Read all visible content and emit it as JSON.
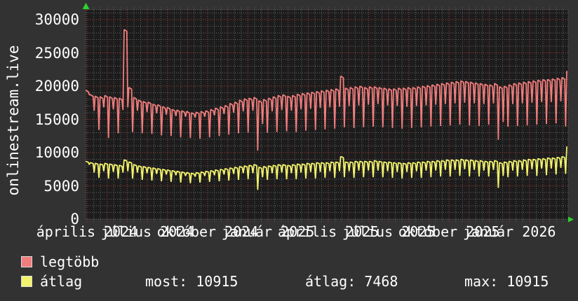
{
  "title_vertical": "onlinestream.live",
  "colors": {
    "background": "#323232",
    "plot_background": "#1c1c1c",
    "grid_minor": "#646464",
    "grid_major": "#a83c3c",
    "text": "#ffffff",
    "arrow": "#2ed22e",
    "series_legtobb": "#f17d7d",
    "series_atlag": "#f3f36d",
    "swatch_border": "#dcdcdc"
  },
  "legend": {
    "series": [
      {
        "label": "legtöbb",
        "color": "#f17d7d"
      },
      {
        "label": "átlag",
        "color": "#f3f36d"
      }
    ],
    "stats": [
      {
        "label": "most:",
        "value": "10915",
        "text": "most: 10915"
      },
      {
        "label": "átlag:",
        "value": "7468",
        "text": "átlag: 7468"
      },
      {
        "label": "max:",
        "value": "10915",
        "text": "max: 10915"
      }
    ]
  },
  "chart_data": {
    "type": "line",
    "title": "onlinestream.live",
    "xlabel": "",
    "ylabel": "",
    "ylim": [
      0,
      30000
    ],
    "y_ticks": [
      30000,
      25000,
      20000,
      15000,
      10000,
      5000,
      0
    ],
    "grid": "dotted, minor every 1000 y / ~10 days x, major red every 5000 y / monthly x",
    "legend_position": "bottom-left",
    "x_range": "április 2024 – február 2026, weekly resolution",
    "x_labels": [
      {
        "text": "április 2024",
        "month": 0
      },
      {
        "text": "július 2024",
        "month": 3
      },
      {
        "text": "október 2024",
        "month": 6
      },
      {
        "text": "január 2025",
        "month": 9
      },
      {
        "text": "április 2025",
        "month": 12
      },
      {
        "text": "július 2025",
        "month": 15
      },
      {
        "text": "október 2025",
        "month": 18
      },
      {
        "text": "január 2026",
        "month": 21
      }
    ],
    "stats": {
      "most": 10915,
      "atlag": 7468,
      "max": 10915
    },
    "series": [
      {
        "name": "legtöbb",
        "color": "#f17d7d",
        "x_unit": "week",
        "weekly_high": [
          19400,
          18700,
          18500,
          18400,
          18600,
          18400,
          18300,
          18200,
          28500,
          19800,
          18300,
          17900,
          17700,
          17600,
          17300,
          17200,
          16900,
          16800,
          16500,
          16400,
          16300,
          16200,
          16000,
          16100,
          16200,
          16300,
          16500,
          16700,
          16900,
          17100,
          17400,
          17600,
          17900,
          18100,
          18200,
          18300,
          17800,
          18000,
          18200,
          18400,
          18600,
          18700,
          18500,
          18600,
          18800,
          18900,
          19000,
          19100,
          19200,
          19300,
          19400,
          19500,
          19600,
          21500,
          19700,
          19800,
          19900,
          20000,
          19800,
          19900,
          19900,
          19800,
          19700,
          19600,
          19600,
          19700,
          19700,
          19800,
          19800,
          19900,
          20000,
          20100,
          20200,
          20300,
          20400,
          20500,
          20600,
          20700,
          20800,
          20700,
          20600,
          20500,
          20400,
          20300,
          20200,
          20400,
          19900,
          20000,
          20200,
          20400,
          20500,
          20600,
          20700,
          20800,
          20900,
          21000,
          21000,
          21100,
          21200,
          21300
        ],
        "weekly_low": [
          18700,
          16300,
          13400,
          16800,
          12200,
          16500,
          12900,
          16400,
          16800,
          13100,
          16300,
          12900,
          16100,
          12800,
          15900,
          12600,
          15700,
          12500,
          15500,
          12300,
          15400,
          12200,
          15300,
          12100,
          15400,
          12300,
          15600,
          12500,
          15800,
          12700,
          16000,
          12900,
          16200,
          13000,
          16300,
          10300,
          14300,
          13000,
          16200,
          13100,
          16400,
          13200,
          16300,
          13100,
          16500,
          13300,
          16600,
          13400,
          16700,
          13500,
          16800,
          13600,
          16900,
          13800,
          17000,
          13700,
          17100,
          13800,
          17200,
          13900,
          17300,
          13800,
          17100,
          13700,
          17000,
          13600,
          16900,
          13700,
          17000,
          13800,
          17100,
          13900,
          17200,
          14000,
          17300,
          14100,
          17400,
          14200,
          17500,
          14100,
          17400,
          14000,
          17300,
          14200,
          17400,
          11900,
          14600,
          13900,
          17300,
          14000,
          17400,
          14100,
          17500,
          14200,
          17600,
          14300,
          17600,
          14400,
          17700,
          13900
        ],
        "final": 22300
      },
      {
        "name": "átlag",
        "color": "#f3f36d",
        "x_unit": "week",
        "weekly_high": [
          8700,
          8500,
          8400,
          8300,
          8400,
          8300,
          8200,
          8100,
          8900,
          8600,
          8200,
          8000,
          7900,
          7800,
          7700,
          7600,
          7500,
          7400,
          7300,
          7200,
          7100,
          7000,
          6900,
          7000,
          7100,
          7200,
          7300,
          7400,
          7500,
          7600,
          7700,
          7800,
          7900,
          8000,
          8100,
          8200,
          7800,
          7900,
          8000,
          8100,
          8200,
          8200,
          8100,
          8200,
          8300,
          8300,
          8400,
          8400,
          8500,
          8500,
          8500,
          8600,
          8600,
          9400,
          8600,
          8600,
          8700,
          8700,
          8700,
          8700,
          8800,
          8700,
          8600,
          8600,
          8500,
          8500,
          8400,
          8500,
          8500,
          8600,
          8600,
          8700,
          8700,
          8800,
          8800,
          8900,
          8900,
          8900,
          9000,
          8900,
          8900,
          8800,
          8800,
          8700,
          8700,
          8800,
          8500,
          8600,
          8700,
          8800,
          8800,
          8900,
          9000,
          9000,
          9100,
          9100,
          9200,
          9200,
          9300,
          9400
        ],
        "weekly_low": [
          8200,
          7000,
          6200,
          7200,
          6100,
          7100,
          6100,
          7000,
          7200,
          6100,
          7000,
          5900,
          6900,
          5800,
          6800,
          5700,
          6700,
          5600,
          6600,
          5500,
          6500,
          5400,
          6400,
          5500,
          6500,
          5600,
          6600,
          5700,
          6700,
          5800,
          6800,
          5900,
          6900,
          6000,
          6900,
          4400,
          6300,
          5900,
          6900,
          6000,
          7000,
          6000,
          6900,
          6000,
          7000,
          6100,
          7100,
          6100,
          7100,
          6200,
          7200,
          6200,
          7200,
          6300,
          7200,
          6200,
          7300,
          6300,
          7300,
          6300,
          7300,
          6300,
          7200,
          6200,
          7100,
          6100,
          7100,
          6200,
          7200,
          6200,
          7300,
          6300,
          7300,
          6400,
          7400,
          6400,
          7400,
          6500,
          7500,
          6400,
          7400,
          6400,
          7300,
          6400,
          7400,
          4700,
          6500,
          6300,
          7300,
          6400,
          7400,
          6500,
          7500,
          6500,
          7600,
          6600,
          7600,
          6700,
          7700,
          6800
        ],
        "final": 10915
      }
    ]
  }
}
